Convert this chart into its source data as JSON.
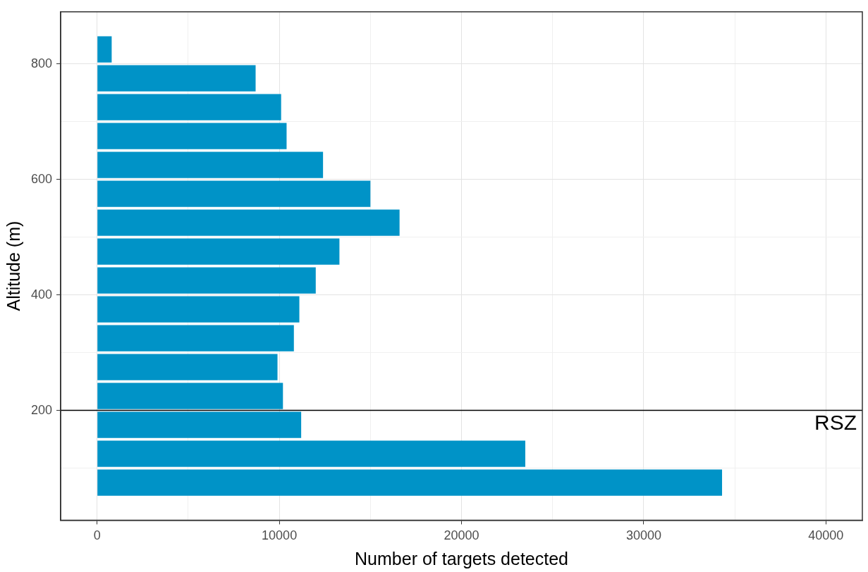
{
  "chart_data": {
    "type": "bar",
    "orientation": "horizontal",
    "xlabel": "Number of targets detected",
    "ylabel": "Altitude (m)",
    "x": [
      75,
      125,
      175,
      225,
      275,
      325,
      375,
      425,
      475,
      525,
      575,
      625,
      675,
      725,
      775,
      825
    ],
    "values": [
      34300,
      23500,
      11200,
      10200,
      9900,
      10800,
      11100,
      12000,
      13300,
      16600,
      15000,
      12400,
      10400,
      10100,
      8700,
      800
    ],
    "color": "#0093c7",
    "xlim": [
      -2000,
      42000
    ],
    "xticks": [
      0,
      {
        "value": 5000,
        "label": null
      },
      10000,
      {
        "value": 15000,
        "label": null
      },
      20000,
      {
        "value": 25000,
        "label": null
      },
      30000,
      {
        "value": 35000,
        "label": null
      },
      40000
    ],
    "ylim": [
      10,
      890
    ],
    "yticks": [
      {
        "value": 100,
        "label": null
      },
      200,
      {
        "value": 300,
        "label": null
      },
      400,
      {
        "value": 500,
        "label": null
      },
      600,
      {
        "value": 700,
        "label": null
      },
      800
    ],
    "ref_lines": [
      {
        "axis": "y",
        "value": 200,
        "label": "RSZ",
        "color": "#000000"
      }
    ],
    "grid": true,
    "legend": false
  }
}
